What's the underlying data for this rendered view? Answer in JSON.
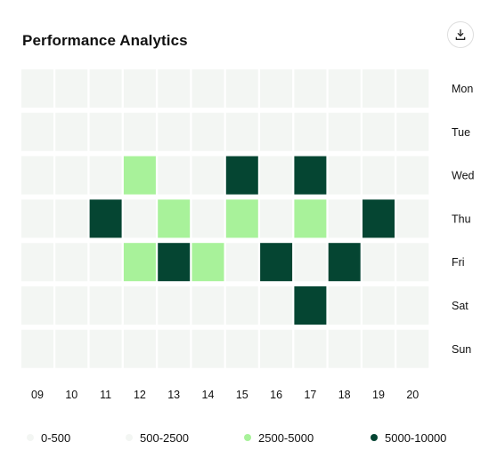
{
  "title": "Performance Analytics",
  "download_icon": "download-icon",
  "colors": {
    "empty": "#f3f6f3",
    "tier1": "#f3f6f3",
    "tier2": "#f3f6f3",
    "tier3": "#a8f29a",
    "tier4": "#054532"
  },
  "legend": [
    {
      "label": "0-500",
      "color": "#f3f6f3"
    },
    {
      "label": "500-2500",
      "color": "#f3f6f3"
    },
    {
      "label": "2500-5000",
      "color": "#a8f29a"
    },
    {
      "label": "5000-10000",
      "color": "#054532"
    }
  ],
  "chart_data": {
    "type": "heatmap",
    "title": "Performance Analytics",
    "x_categories": [
      "09",
      "10",
      "11",
      "12",
      "13",
      "14",
      "15",
      "16",
      "17",
      "18",
      "19",
      "20"
    ],
    "y_categories": [
      "Mon",
      "Tue",
      "Wed",
      "Thu",
      "Fri",
      "Sat",
      "Sun"
    ],
    "value_bins": [
      "0-500",
      "500-2500",
      "2500-5000",
      "5000-10000"
    ],
    "cells": [
      {
        "x": "12",
        "y": "Wed",
        "bin": "2500-5000"
      },
      {
        "x": "15",
        "y": "Wed",
        "bin": "5000-10000"
      },
      {
        "x": "17",
        "y": "Wed",
        "bin": "5000-10000"
      },
      {
        "x": "11",
        "y": "Thu",
        "bin": "5000-10000"
      },
      {
        "x": "13",
        "y": "Thu",
        "bin": "2500-5000"
      },
      {
        "x": "15",
        "y": "Thu",
        "bin": "2500-5000"
      },
      {
        "x": "17",
        "y": "Thu",
        "bin": "2500-5000"
      },
      {
        "x": "19",
        "y": "Thu",
        "bin": "5000-10000"
      },
      {
        "x": "12",
        "y": "Fri",
        "bin": "2500-5000"
      },
      {
        "x": "13",
        "y": "Fri",
        "bin": "5000-10000"
      },
      {
        "x": "14",
        "y": "Fri",
        "bin": "2500-5000"
      },
      {
        "x": "16",
        "y": "Fri",
        "bin": "5000-10000"
      },
      {
        "x": "18",
        "y": "Fri",
        "bin": "5000-10000"
      },
      {
        "x": "17",
        "y": "Sat",
        "bin": "5000-10000"
      }
    ],
    "legend_position": "bottom",
    "grid": false
  }
}
